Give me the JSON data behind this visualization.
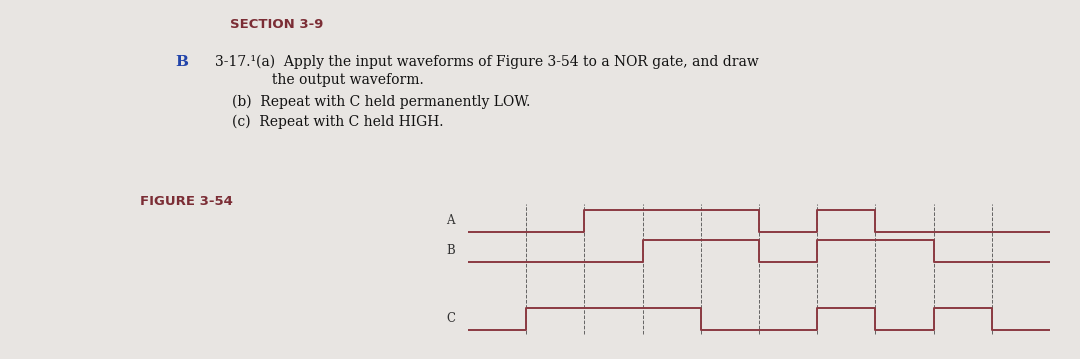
{
  "bg_color": "#e8e5e2",
  "waveform_color": "#8B3A42",
  "dashed_color": "#999999",
  "section_title": "SECTION 3-9",
  "section_title_color": "#7B2D35",
  "problem_label": "B",
  "problem_label_color": "#2244aa",
  "text_line1": "3-17.¹(a)  Apply the input waveforms of Figure 3-54 to a NOR gate, and draw",
  "text_line2": "             the output waveform.",
  "text_line3": "(b)  Repeat with C held permanently LOW.",
  "text_line4": "(c)  Repeat with C held HIGH.",
  "figure_label": "FIGURE 3-54",
  "figure_label_color": "#7B2D35",
  "signal_labels": [
    "A",
    "B",
    "C"
  ],
  "t_total": 10,
  "waveform_A": [
    0,
    0,
    2,
    0,
    2,
    1,
    5,
    1,
    5,
    0,
    6,
    0,
    6,
    1,
    7,
    1,
    7,
    0,
    10,
    0
  ],
  "waveform_B": [
    0,
    0,
    3,
    0,
    3,
    1,
    5,
    1,
    5,
    0,
    6,
    0,
    6,
    1,
    8,
    1,
    8,
    0,
    10,
    0
  ],
  "waveform_C": [
    0,
    0,
    1,
    0,
    1,
    1,
    4,
    1,
    4,
    0,
    6,
    0,
    6,
    1,
    7,
    1,
    7,
    0,
    8,
    0,
    8,
    1,
    9,
    1,
    9,
    0,
    10,
    0
  ],
  "dashed_x": [
    1,
    2,
    3,
    4,
    5,
    6,
    7,
    8,
    9
  ],
  "figsize": [
    10.8,
    3.59
  ],
  "dpi": 100
}
